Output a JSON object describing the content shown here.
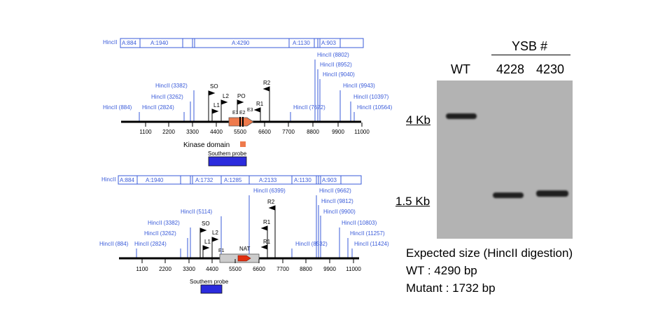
{
  "map_wt": {
    "fragments": [
      "A:884",
      "A:1940",
      "A:4290",
      "A:1130",
      "A:903"
    ],
    "hinc_label": "HincII",
    "sites": [
      "HincII (884)",
      "HincII (2824)",
      "HincII (3262)",
      "HincII (3382)",
      "HincII (7672)",
      "HincII (8802)",
      "HincII (8952)",
      "HincII (9040)",
      "HincII (9943)",
      "HincII (10397)",
      "HincII (10564)"
    ],
    "primers": [
      "SO",
      "L2",
      "L1",
      "PO",
      "R2",
      "R1"
    ],
    "exons": [
      "E1",
      "E2",
      "E3"
    ],
    "axis_ticks": [
      "1100",
      "2200",
      "3300",
      "4400",
      "5500",
      "6600",
      "7700",
      "8800",
      "9900",
      "11000"
    ],
    "legend_label": "Kinase domain",
    "probe_label": "Southern probe"
  },
  "map_mut": {
    "fragments": [
      "A:884",
      "A:1940",
      "A:1732",
      "A:1285",
      "A:2133",
      "A:1130",
      "A:903"
    ],
    "hinc_label": "HincII",
    "sites": [
      "HincII (884)",
      "HincII (2824)",
      "HincII (3262)",
      "HincII (3382)",
      "HincII (5114)",
      "HincII (6399)",
      "HincII (8532)",
      "HincII (9662)",
      "HincII (9812)",
      "HincII (9900)",
      "HincII (10803)",
      "HincII (11257)",
      "HincII (11424)"
    ],
    "primers": [
      "SO",
      "L2",
      "L1",
      "R2",
      "R1",
      "R1"
    ],
    "exons": [
      "E1"
    ],
    "marker": "NAT",
    "axis_ticks": [
      "1100",
      "2200",
      "3300",
      "4400",
      "5500",
      "6600",
      "7700",
      "8800",
      "9900",
      "11000"
    ],
    "probe_label": "Southern probe"
  },
  "gel": {
    "strain_header": "YSB #",
    "lanes": [
      "WT",
      "4228",
      "4230"
    ],
    "size_markers": [
      "4 Kb",
      "1.5 Kb"
    ]
  },
  "expected": {
    "title": "Expected size (HincII digestion)",
    "wt": "WT : 4290 bp",
    "mutant": "Mutant : 1732 bp"
  },
  "colors": {
    "map_blue": "#3a5bd9",
    "kinase": "#ee7a4c",
    "nat": "#e03010",
    "probe": "#2b2bdd",
    "gel_bg": "#b3b3b3",
    "band": "#1f1f1f"
  }
}
